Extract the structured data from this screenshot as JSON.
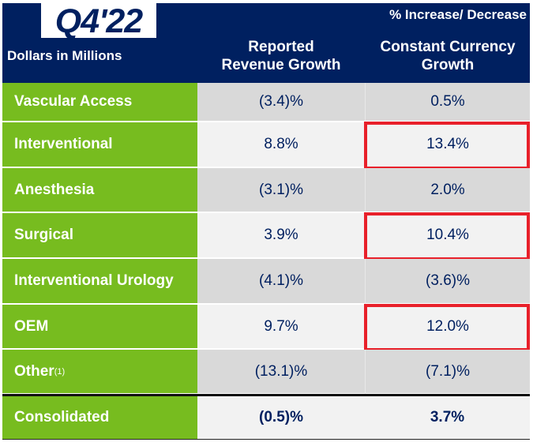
{
  "title": "Q4'22",
  "header": {
    "group_label": "% Increase/ Decrease",
    "units_label": "Dollars in Millions",
    "col1": [
      "Reported",
      "Revenue Growth"
    ],
    "col2": [
      "Constant Currency",
      "Growth"
    ]
  },
  "colors": {
    "header": "#002060",
    "label_bg": "#77bc1f",
    "highlight": "#e8202a",
    "row_dark": "#d9d9d9",
    "row_light": "#f2f2f2"
  },
  "rows": [
    {
      "label": "Vascular Access",
      "reported": "(3.4)%",
      "constant": "0.5%"
    },
    {
      "label": "Interventional",
      "reported": "8.8%",
      "constant": "13.4%",
      "highlighted": true
    },
    {
      "label": "Anesthesia",
      "reported": "(3.1)%",
      "constant": "2.0%"
    },
    {
      "label": "Surgical",
      "reported": "3.9%",
      "constant": "10.4%",
      "highlighted": true
    },
    {
      "label": "Interventional Urology",
      "reported": "(4.1)%",
      "constant": "(3.6)%"
    },
    {
      "label": "OEM",
      "reported": "9.7%",
      "constant": "12.0%",
      "highlighted": true
    },
    {
      "label": "Other",
      "footnote": "(1)",
      "reported": "(13.1)%",
      "constant": "(7.1)%"
    }
  ],
  "total": {
    "label": "Consolidated",
    "reported": "(0.5)%",
    "constant": "3.7%"
  }
}
